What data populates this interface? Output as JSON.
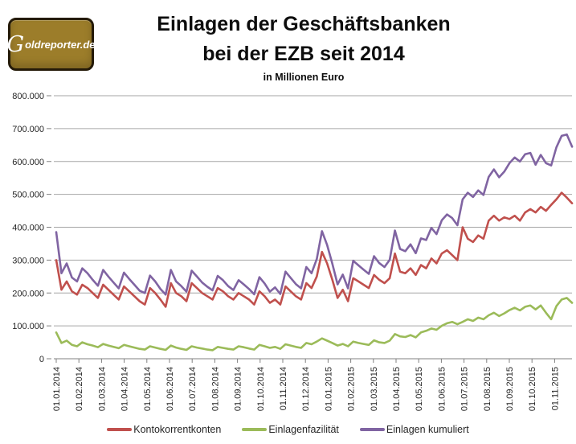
{
  "logo": {
    "initial": "G",
    "rest": "oldreporter.de"
  },
  "title": {
    "line1": "Einlagen der Geschäftsbanken",
    "line2": "bei der EZB seit 2014",
    "subtitle": "in Millionen Euro"
  },
  "colors": {
    "kontokorrentkonten": "#C0504D",
    "einlagenfazilitaet": "#9BBB59",
    "einlagen_kumuliert": "#8064A2",
    "gridline": "#A6A6A6",
    "axis": "#808080",
    "label_text": "#262626",
    "logo_gold": "#9C7D2A"
  },
  "chart_data": {
    "type": "line",
    "title": "Einlagen der Geschäftsbanken bei der EZB seit 2014",
    "subtitle": "in Millionen Euro",
    "xlabel": "",
    "ylabel": "",
    "ylim": [
      0,
      800000
    ],
    "y_step": 100000,
    "grid": true,
    "legend_position": "bottom",
    "y_tick_labels": [
      "0",
      "100.000",
      "200.000",
      "300.000",
      "400.000",
      "500.000",
      "600.000",
      "700.000",
      "800.000"
    ],
    "x_tick_labels": [
      "01.01.2014",
      "01.02.2014",
      "01.03.2014",
      "01.04.2014",
      "01.05.2014",
      "01.06.2014",
      "01.07.2014",
      "01.08.2014",
      "01.09.2014",
      "01.10.2014",
      "01.11.2014",
      "01.12.2014",
      "01.01.2015",
      "01.02.2015",
      "01.03.2015",
      "01.04.2015",
      "01.05.2015",
      "01.06.2015",
      "01.07.2015",
      "01.08.2015",
      "01.09.2015",
      "01.10.2015",
      "01.11.2015"
    ],
    "x": [
      "2014-01-01",
      "2014-01-08",
      "2014-01-15",
      "2014-01-22",
      "2014-01-29",
      "2014-02-05",
      "2014-02-12",
      "2014-02-19",
      "2014-02-26",
      "2014-03-05",
      "2014-03-12",
      "2014-03-19",
      "2014-03-26",
      "2014-04-02",
      "2014-04-09",
      "2014-04-16",
      "2014-04-23",
      "2014-04-30",
      "2014-05-07",
      "2014-05-14",
      "2014-05-21",
      "2014-05-28",
      "2014-06-04",
      "2014-06-11",
      "2014-06-18",
      "2014-06-25",
      "2014-07-02",
      "2014-07-09",
      "2014-07-16",
      "2014-07-23",
      "2014-07-30",
      "2014-08-06",
      "2014-08-13",
      "2014-08-20",
      "2014-08-27",
      "2014-09-03",
      "2014-09-10",
      "2014-09-17",
      "2014-09-24",
      "2014-10-01",
      "2014-10-08",
      "2014-10-15",
      "2014-10-22",
      "2014-10-29",
      "2014-11-05",
      "2014-11-12",
      "2014-11-19",
      "2014-11-26",
      "2014-12-03",
      "2014-12-10",
      "2014-12-17",
      "2014-12-24",
      "2014-12-31",
      "2015-01-07",
      "2015-01-14",
      "2015-01-21",
      "2015-01-28",
      "2015-02-04",
      "2015-02-11",
      "2015-02-18",
      "2015-02-25",
      "2015-03-04",
      "2015-03-11",
      "2015-03-18",
      "2015-03-25",
      "2015-04-01",
      "2015-04-08",
      "2015-04-15",
      "2015-04-22",
      "2015-04-29",
      "2015-05-06",
      "2015-05-13",
      "2015-05-20",
      "2015-05-27",
      "2015-06-03",
      "2015-06-10",
      "2015-06-17",
      "2015-06-24",
      "2015-07-01",
      "2015-07-08",
      "2015-07-15",
      "2015-07-22",
      "2015-07-29",
      "2015-08-05",
      "2015-08-12",
      "2015-08-19",
      "2015-08-26",
      "2015-09-02",
      "2015-09-09",
      "2015-09-16",
      "2015-09-23",
      "2015-09-30",
      "2015-10-07",
      "2015-10-14",
      "2015-10-21",
      "2015-10-28",
      "2015-11-04",
      "2015-11-11",
      "2015-11-18",
      "2015-11-25"
    ],
    "series": [
      {
        "name": "Kontokorrentkonten",
        "color": "#C0504D",
        "values": [
          300000,
          210000,
          235000,
          205000,
          195000,
          225000,
          215000,
          200000,
          185000,
          225000,
          210000,
          195000,
          180000,
          220000,
          205000,
          190000,
          175000,
          165000,
          215000,
          200000,
          180000,
          158000,
          230000,
          200000,
          190000,
          175000,
          230000,
          215000,
          200000,
          190000,
          180000,
          215000,
          205000,
          190000,
          180000,
          200000,
          190000,
          180000,
          165000,
          205000,
          190000,
          170000,
          180000,
          165000,
          220000,
          205000,
          190000,
          180000,
          230000,
          215000,
          250000,
          325000,
          290000,
          240000,
          185000,
          210000,
          175000,
          245000,
          235000,
          225000,
          215000,
          255000,
          240000,
          230000,
          245000,
          320000,
          265000,
          260000,
          275000,
          255000,
          285000,
          275000,
          305000,
          290000,
          320000,
          330000,
          315000,
          300000,
          400000,
          365000,
          355000,
          375000,
          365000,
          420000,
          435000,
          420000,
          430000,
          425000,
          435000,
          420000,
          445000,
          455000,
          445000,
          462000,
          450000,
          468000,
          485000,
          505000,
          490000,
          473000
        ]
      },
      {
        "name": "Einlagenfazilität",
        "color": "#9BBB59",
        "values": [
          80000,
          48000,
          55000,
          42000,
          38000,
          50000,
          44000,
          40000,
          35000,
          45000,
          40000,
          36000,
          32000,
          42000,
          38000,
          34000,
          30000,
          28000,
          38000,
          34000,
          30000,
          27000,
          40000,
          34000,
          30000,
          27000,
          38000,
          34000,
          31000,
          28000,
          26000,
          36000,
          33000,
          30000,
          28000,
          38000,
          35000,
          31000,
          28000,
          42000,
          38000,
          33000,
          36000,
          30000,
          44000,
          40000,
          36000,
          33000,
          48000,
          44000,
          52000,
          62000,
          55000,
          48000,
          40000,
          45000,
          38000,
          52000,
          48000,
          45000,
          42000,
          56000,
          50000,
          48000,
          55000,
          75000,
          68000,
          66000,
          72000,
          65000,
          80000,
          85000,
          92000,
          88000,
          100000,
          108000,
          112000,
          105000,
          112000,
          120000,
          115000,
          125000,
          120000,
          132000,
          140000,
          130000,
          138000,
          148000,
          155000,
          147000,
          158000,
          162000,
          150000,
          162000,
          140000,
          120000,
          160000,
          180000,
          185000,
          170000
        ]
      },
      {
        "name": "Einlagen kumuliert",
        "color": "#8064A2",
        "values": [
          385000,
          260000,
          290000,
          247000,
          235000,
          275000,
          260000,
          240000,
          222000,
          270000,
          250000,
          232000,
          214000,
          262000,
          243000,
          225000,
          207000,
          200000,
          253000,
          235000,
          212000,
          195000,
          270000,
          235000,
          221000,
          204000,
          268000,
          250000,
          232000,
          219000,
          208000,
          252000,
          239000,
          221000,
          209000,
          239000,
          226000,
          212000,
          196000,
          248000,
          229000,
          204000,
          217000,
          197000,
          265000,
          246000,
          227000,
          214000,
          279000,
          260000,
          303000,
          388000,
          346000,
          289000,
          226000,
          256000,
          214000,
          298000,
          284000,
          271000,
          258000,
          312000,
          291000,
          279000,
          301000,
          390000,
          334000,
          327000,
          348000,
          321000,
          366000,
          361000,
          398000,
          379000,
          421000,
          439000,
          428000,
          406000,
          485000,
          505000,
          492000,
          512000,
          498000,
          553000,
          576000,
          552000,
          569000,
          595000,
          612000,
          600000,
          622000,
          626000,
          590000,
          620000,
          595000,
          588000,
          643000,
          678000,
          682000,
          645000
        ]
      }
    ]
  }
}
